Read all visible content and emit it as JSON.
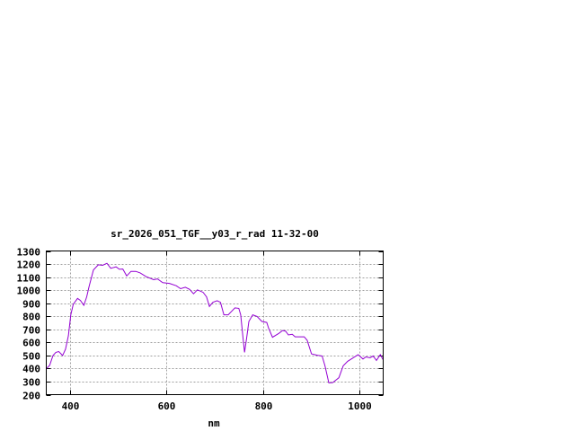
{
  "chart_data": {
    "type": "line",
    "title": "sr_2026_051_TGF__y03_r_rad 11-32-00",
    "xlabel": "nm",
    "ylabel": "",
    "xlim": [
      350,
      1050
    ],
    "ylim": [
      200,
      1300
    ],
    "xticks": [
      400,
      600,
      800,
      1000
    ],
    "yticks": [
      200,
      300,
      400,
      500,
      600,
      700,
      800,
      900,
      1000,
      1100,
      1200,
      1300
    ],
    "grid": true,
    "line_color": "#9400d3",
    "series": [
      {
        "x": [
          350,
          357,
          364,
          370,
          376,
          384,
          390,
          396,
          401,
          406,
          415,
          421,
          428,
          434,
          439,
          448,
          458,
          467,
          476,
          484,
          495,
          502,
          509,
          517,
          526,
          536,
          545,
          557,
          573,
          581,
          592,
          606,
          620,
          629,
          639,
          648,
          656,
          664,
          676,
          683,
          689,
          696,
          705,
          712,
          719,
          728,
          734,
          742,
          750,
          754,
          759,
          762,
          766,
          771,
          779,
          788,
          798,
          808,
          812,
          820,
          833,
          841,
          847,
          853,
          861,
          867,
          886,
          892,
          901,
          914,
          923,
          929,
          937,
          945,
          958,
          967,
          976,
          986,
          998,
          1008,
          1014,
          1023,
          1029,
          1036,
          1044,
          1050
        ],
        "y": [
          398,
          425,
          500,
          524,
          530,
          500,
          547,
          650,
          811,
          891,
          937,
          921,
          884,
          949,
          1029,
          1155,
          1194,
          1190,
          1206,
          1167,
          1178,
          1160,
          1162,
          1109,
          1144,
          1144,
          1132,
          1105,
          1080,
          1086,
          1057,
          1052,
          1034,
          1011,
          1022,
          1006,
          972,
          1002,
          983,
          949,
          875,
          907,
          919,
          907,
          811,
          811,
          834,
          864,
          861,
          811,
          627,
          524,
          627,
          760,
          811,
          799,
          760,
          753,
          708,
          639,
          669,
          691,
          687,
          657,
          662,
          643,
          643,
          616,
          512,
          501,
          496,
          421,
          290,
          292,
          329,
          421,
          455,
          478,
          506,
          473,
          489,
          482,
          496,
          462,
          506,
          467
        ]
      }
    ]
  }
}
